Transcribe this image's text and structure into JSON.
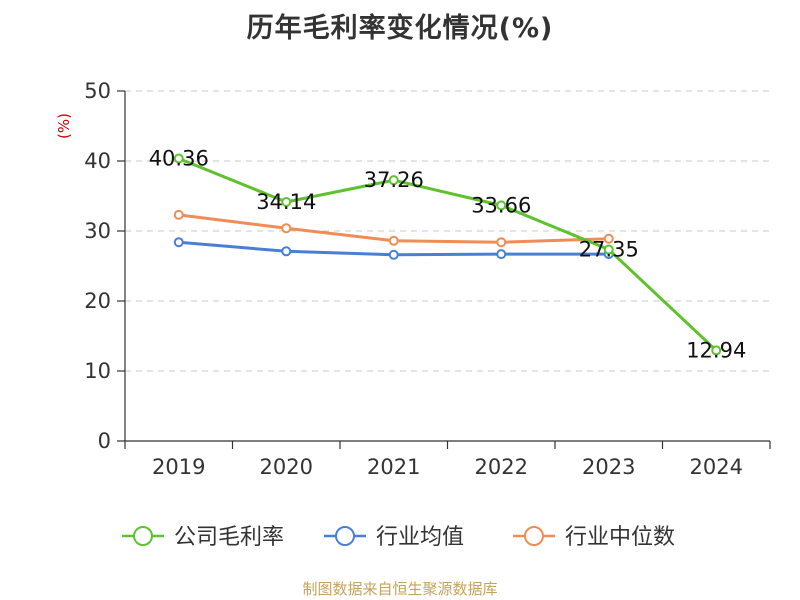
{
  "chart_data": {
    "type": "line",
    "title": "历年毛利率变化情况(%)",
    "ylabel": "(%)",
    "xlabel": "",
    "categories": [
      "2019",
      "2020",
      "2021",
      "2022",
      "2023",
      "2024"
    ],
    "ylim": [
      0,
      50
    ],
    "yticks": [
      0,
      10,
      20,
      30,
      40,
      50
    ],
    "grid": true,
    "legend_position": "bottom",
    "series": [
      {
        "name": "公司毛利率",
        "color": "#5ec22e",
        "values": [
          40.36,
          34.14,
          37.26,
          33.66,
          27.35,
          12.94
        ],
        "labels": [
          "40.36",
          "34.14",
          "37.26",
          "33.66",
          "27.35",
          "12.94"
        ]
      },
      {
        "name": "行业均值",
        "color": "#4a7fd6",
        "values": [
          28.4,
          27.1,
          26.6,
          26.7,
          26.7,
          null
        ]
      },
      {
        "name": "行业中位数",
        "color": "#f08c56",
        "values": [
          32.3,
          30.4,
          28.6,
          28.4,
          28.9,
          null
        ]
      }
    ]
  },
  "footer": "制图数据来自恒生聚源数据库"
}
